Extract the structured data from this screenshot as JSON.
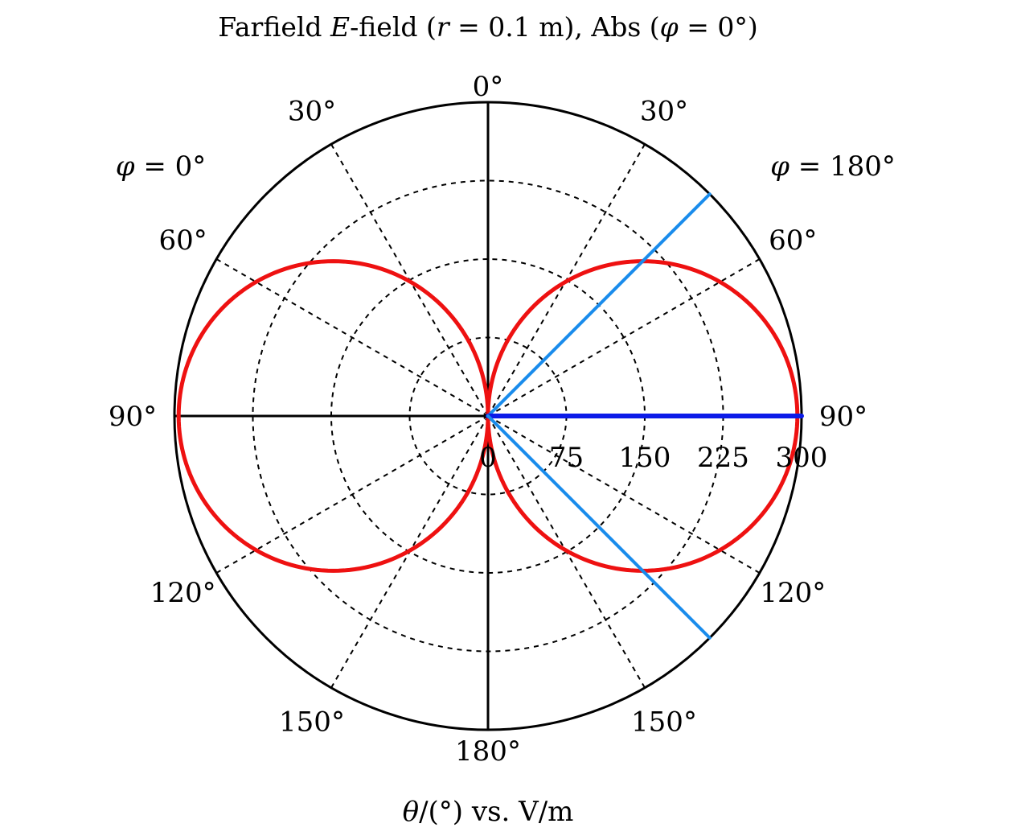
{
  "chart_data": {
    "type": "polar",
    "title_parts": {
      "p1": "Farfield ",
      "p2": "E",
      "p3": "-field (",
      "p4": "r",
      "p5": " = 0.1 m), Abs (",
      "p6": "φ",
      "p7": " = 0°)"
    },
    "xlabel_parts": {
      "p1": "θ",
      "p2": "/(°) vs. V/m"
    },
    "half_labels": {
      "left": {
        "sym": "φ",
        "rest": " = 0°"
      },
      "right": {
        "sym": "φ",
        "rest": " = 180°"
      }
    },
    "angle_ticks": [
      {
        "angle": 0,
        "label": "0°",
        "side": "center"
      },
      {
        "angle": 30,
        "label": "30°",
        "side": "left"
      },
      {
        "angle": 60,
        "label": "60°",
        "side": "left"
      },
      {
        "angle": 90,
        "label": "90°",
        "side": "left"
      },
      {
        "angle": 120,
        "label": "120°",
        "side": "left"
      },
      {
        "angle": 150,
        "label": "150°",
        "side": "left"
      },
      {
        "angle": 180,
        "label": "180°",
        "side": "center"
      },
      {
        "angle": 30,
        "label": "30°",
        "side": "right"
      },
      {
        "angle": 60,
        "label": "60°",
        "side": "right"
      },
      {
        "angle": 90,
        "label": "90°",
        "side": "right"
      },
      {
        "angle": 120,
        "label": "120°",
        "side": "right"
      },
      {
        "angle": 150,
        "label": "150°",
        "side": "right"
      }
    ],
    "radial_ticks": [
      0,
      75,
      150,
      225,
      300
    ],
    "radial_tick_labels": [
      "0",
      "75",
      "150",
      "225",
      "300"
    ],
    "rlim": [
      0,
      300
    ],
    "grid": true,
    "series": [
      {
        "kind": "pattern",
        "color": "#ee1111",
        "max_value": 296,
        "theta_deg": [
          0,
          10,
          20,
          30,
          40,
          50,
          60,
          70,
          80,
          90,
          100,
          110,
          120,
          130,
          140,
          150,
          160,
          170,
          180
        ],
        "values": [
          0,
          51,
          101,
          148,
          190,
          227,
          256,
          278,
          292,
          296,
          292,
          278,
          256,
          227,
          190,
          148,
          101,
          51,
          0
        ]
      },
      {
        "kind": "ray",
        "color": "#1a8cec",
        "theta_deg": 45,
        "value": 300,
        "side": "right"
      },
      {
        "kind": "ray",
        "color": "#0c1be8",
        "theta_deg": 90,
        "value": 300,
        "side": "right"
      },
      {
        "kind": "ray",
        "color": "#1a8cec",
        "theta_deg": 135,
        "value": 300,
        "side": "right"
      }
    ]
  }
}
